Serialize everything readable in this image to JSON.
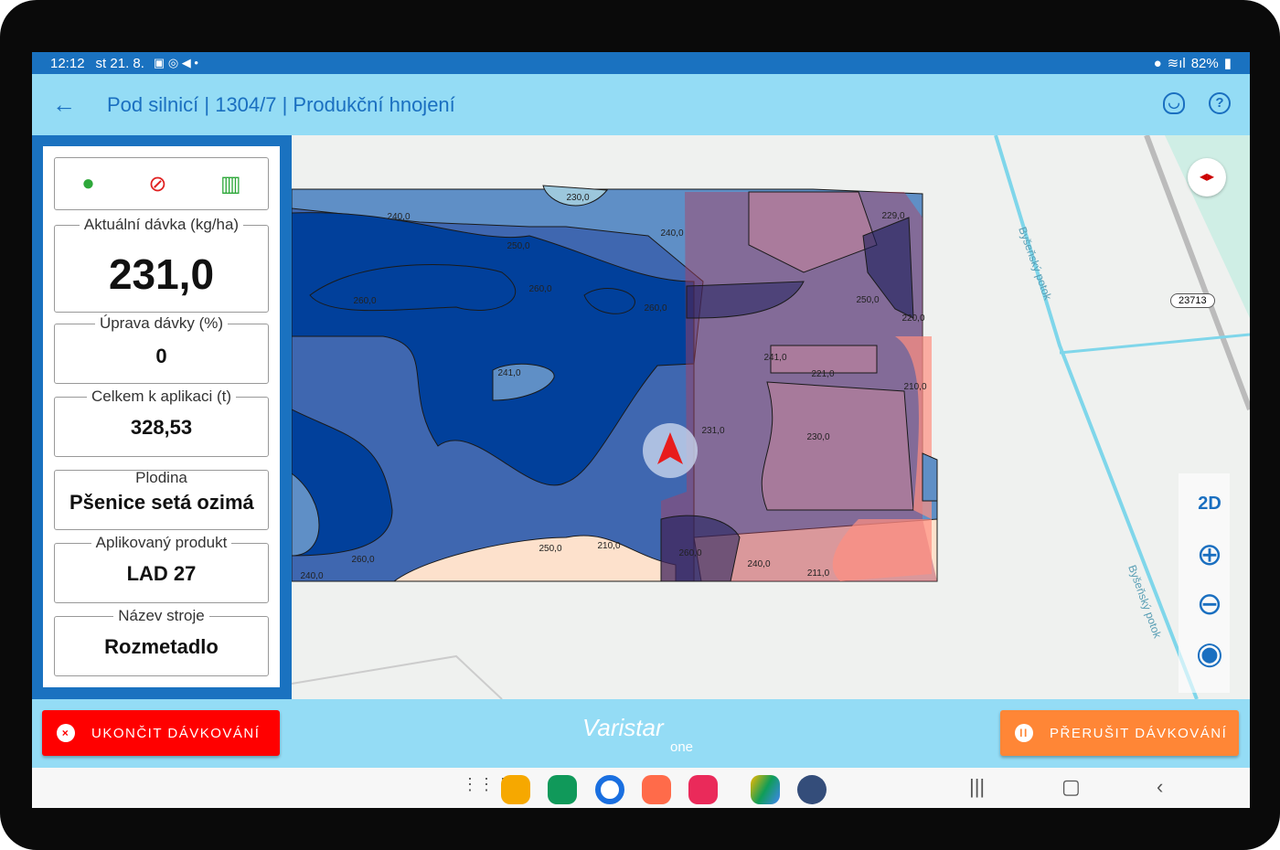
{
  "status": {
    "time": "12:12",
    "date": "st 21. 8.",
    "battery": "82%"
  },
  "header": {
    "title": "Pod silnicí | 1304/7 | Produkční hnojení",
    "back_icon": "arrow-left-icon",
    "support_icon": "headset-icon",
    "help_icon": "help-circle-icon"
  },
  "panel": {
    "icons": [
      "location-pin-icon",
      "wifi-off-icon",
      "map-icon"
    ],
    "fields": [
      {
        "label": "Aktuální dávka (kg/ha)",
        "value": "231,0"
      },
      {
        "label": "Úprava dávky (%)",
        "value": "0"
      },
      {
        "label": "Celkem k aplikaci (t)",
        "value": "328,53"
      },
      {
        "label": "Plodina",
        "value": "Pšenice setá ozimá"
      },
      {
        "label": "Aplikovaný produkt",
        "value": "LAD 27"
      },
      {
        "label": "Název stroje",
        "value": "Rozmetadlo"
      }
    ]
  },
  "map": {
    "zone_labels": [
      "230,0",
      "240,0",
      "240,0",
      "250,0",
      "260,0",
      "260,0",
      "260,0",
      "241,0",
      "229,0",
      "250,0",
      "220,0",
      "241,0",
      "221,0",
      "210,0",
      "231,0",
      "230,0",
      "250,0",
      "210,0",
      "260,0",
      "240,0",
      "211,0",
      "260,0",
      "240,0"
    ],
    "stream_label": "Byšeňský potok",
    "road_label": "23713",
    "controls": {
      "mode": "2D",
      "zoom_in": "plus-icon",
      "zoom_out": "minus-icon",
      "locate": "crosshair-icon",
      "compass": "compass-icon"
    }
  },
  "footer": {
    "stop_label": "UKONČIT DÁVKOVÁNÍ",
    "pause_label": "PŘERUŠIT DÁVKOVÁNÍ",
    "logo": "Varistar",
    "logo_sub": "one",
    "stop_color": "#ff0000",
    "pause_color": "#ff8636"
  },
  "navbar": {
    "apps": [
      "apps-grid-icon",
      "files-icon",
      "phone-icon",
      "messages-icon",
      "contacts-icon",
      "camera-icon",
      "drive-icon",
      "settings-icon"
    ]
  }
}
